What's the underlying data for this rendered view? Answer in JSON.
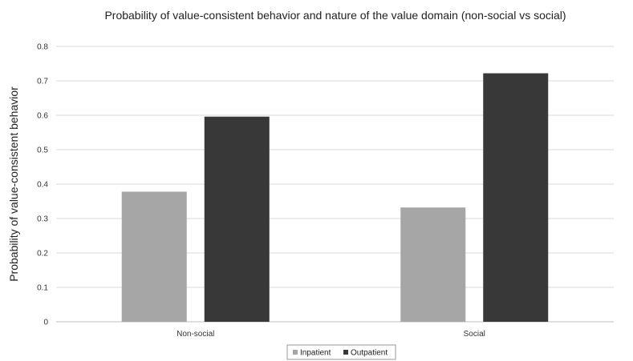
{
  "chart_data": {
    "type": "bar",
    "title": "Probability of value-consistent behavior and nature of the value domain (non-social vs social)",
    "ylabel": "Probability of value-consistent behavior",
    "xlabel": "",
    "categories": [
      "Non-social",
      "Social"
    ],
    "series": [
      {
        "name": "Inpatient",
        "values": [
          0.378,
          0.332
        ],
        "color": "#a6a6a6"
      },
      {
        "name": "Outpatient",
        "values": [
          0.596,
          0.722
        ],
        "color": "#383838"
      }
    ],
    "ylim": [
      0,
      0.8
    ],
    "yticks": [
      "0",
      "0.1",
      "0.2",
      "0.3",
      "0.4",
      "0.5",
      "0.6",
      "0.7",
      "0.8"
    ],
    "grid": true,
    "legend_position": "bottom"
  }
}
